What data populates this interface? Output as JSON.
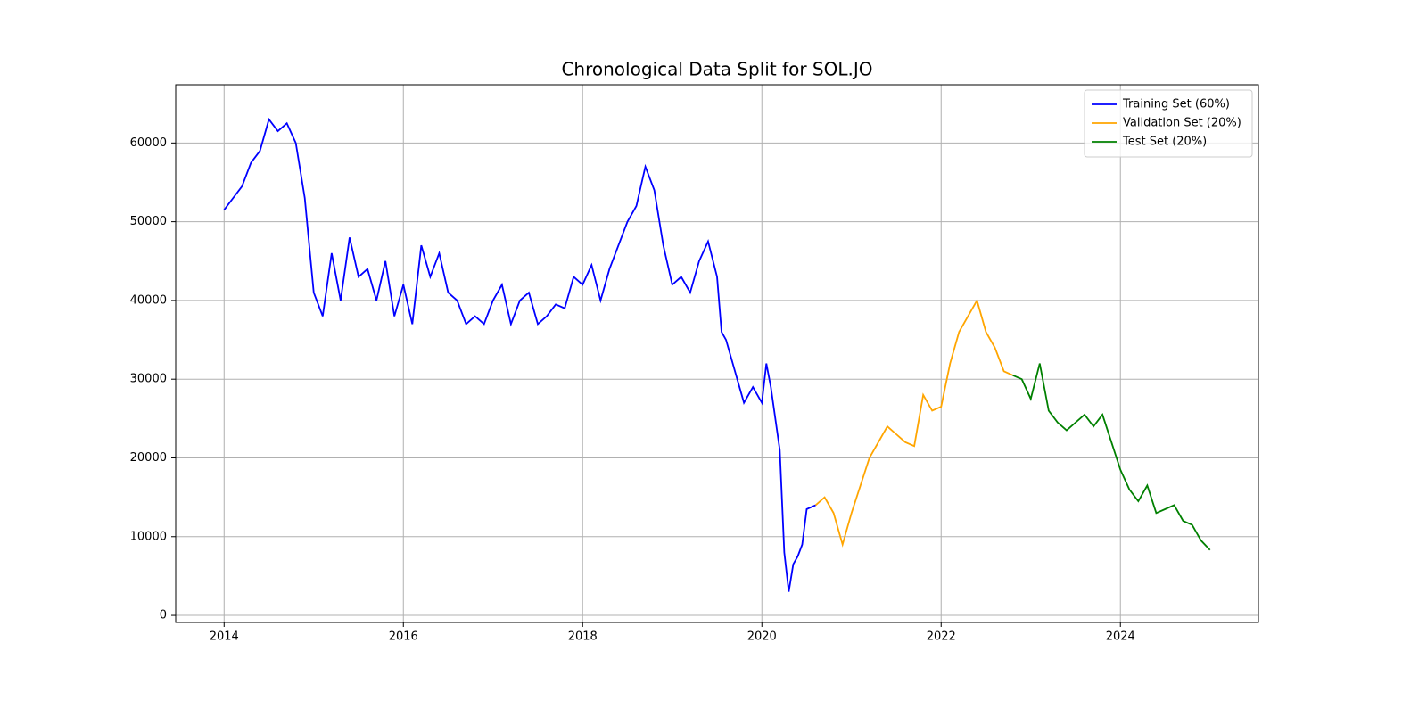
{
  "chart_data": {
    "type": "line",
    "title": "Chronological Data Split for SOL.JO",
    "series": [
      {
        "name": "Training Set (60%)",
        "color": "#0000ff",
        "x": [
          2014.0,
          2014.1,
          2014.2,
          2014.3,
          2014.4,
          2014.5,
          2014.6,
          2014.7,
          2014.8,
          2014.9,
          2015.0,
          2015.1,
          2015.2,
          2015.3,
          2015.4,
          2015.5,
          2015.6,
          2015.7,
          2015.8,
          2015.9,
          2016.0,
          2016.1,
          2016.2,
          2016.3,
          2016.4,
          2016.5,
          2016.6,
          2016.7,
          2016.8,
          2016.9,
          2017.0,
          2017.1,
          2017.2,
          2017.3,
          2017.4,
          2017.5,
          2017.6,
          2017.7,
          2017.8,
          2017.9,
          2018.0,
          2018.1,
          2018.2,
          2018.3,
          2018.4,
          2018.5,
          2018.6,
          2018.7,
          2018.8,
          2018.9,
          2019.0,
          2019.1,
          2019.2,
          2019.3,
          2019.4,
          2019.5,
          2019.55,
          2019.6,
          2019.7,
          2019.8,
          2019.9,
          2020.0,
          2020.05,
          2020.1,
          2020.15,
          2020.2,
          2020.25,
          2020.3,
          2020.35,
          2020.4,
          2020.45,
          2020.5,
          2020.6
        ],
        "values": [
          51500,
          53000,
          54500,
          57500,
          59000,
          63000,
          61500,
          62500,
          60000,
          53000,
          41000,
          38000,
          46000,
          40000,
          48000,
          43000,
          44000,
          40000,
          45000,
          38000,
          42000,
          37000,
          47000,
          43000,
          46000,
          41000,
          40000,
          37000,
          38000,
          37000,
          40000,
          42000,
          37000,
          40000,
          41000,
          37000,
          38000,
          39500,
          39000,
          43000,
          42000,
          44500,
          40000,
          44000,
          47000,
          50000,
          52000,
          57000,
          54000,
          47000,
          42000,
          43000,
          41000,
          45000,
          47500,
          43000,
          36000,
          35000,
          31000,
          27000,
          29000,
          27000,
          32000,
          29000,
          25000,
          21000,
          8000,
          3000,
          6500,
          7500,
          9000,
          13500,
          14000
        ]
      },
      {
        "name": "Validation Set (20%)",
        "color": "#ffa500",
        "x": [
          2020.6,
          2020.7,
          2020.8,
          2020.9,
          2020.95,
          2021.0,
          2021.1,
          2021.2,
          2021.3,
          2021.4,
          2021.5,
          2021.6,
          2021.7,
          2021.8,
          2021.9,
          2022.0,
          2022.1,
          2022.2,
          2022.3,
          2022.4,
          2022.5,
          2022.6,
          2022.7,
          2022.8
        ],
        "values": [
          14000,
          15000,
          13000,
          9000,
          11000,
          13000,
          16500,
          20000,
          22000,
          24000,
          23000,
          22000,
          21500,
          28000,
          26000,
          26500,
          32000,
          36000,
          38000,
          40000,
          36000,
          34000,
          31000,
          30500
        ]
      },
      {
        "name": "Test Set (20%)",
        "color": "#008000",
        "x": [
          2022.8,
          2022.9,
          2023.0,
          2023.1,
          2023.2,
          2023.3,
          2023.4,
          2023.5,
          2023.6,
          2023.7,
          2023.8,
          2023.9,
          2024.0,
          2024.1,
          2024.2,
          2024.3,
          2024.4,
          2024.5,
          2024.6,
          2024.7,
          2024.8,
          2024.9,
          2025.0
        ],
        "values": [
          30500,
          30000,
          27500,
          32000,
          26000,
          24500,
          23500,
          24500,
          25500,
          24000,
          25500,
          22000,
          18500,
          16000,
          14500,
          16500,
          13000,
          13500,
          14000,
          12000,
          11500,
          9500,
          8300
        ]
      }
    ],
    "xlim": [
      2013.46,
      2025.54
    ],
    "xticks": [
      2014,
      2016,
      2018,
      2020,
      2022,
      2024
    ],
    "ylim": [
      -900,
      67400
    ],
    "yticks": [
      0,
      10000,
      20000,
      30000,
      40000,
      50000,
      60000
    ],
    "grid": true,
    "legend": "upper right"
  }
}
